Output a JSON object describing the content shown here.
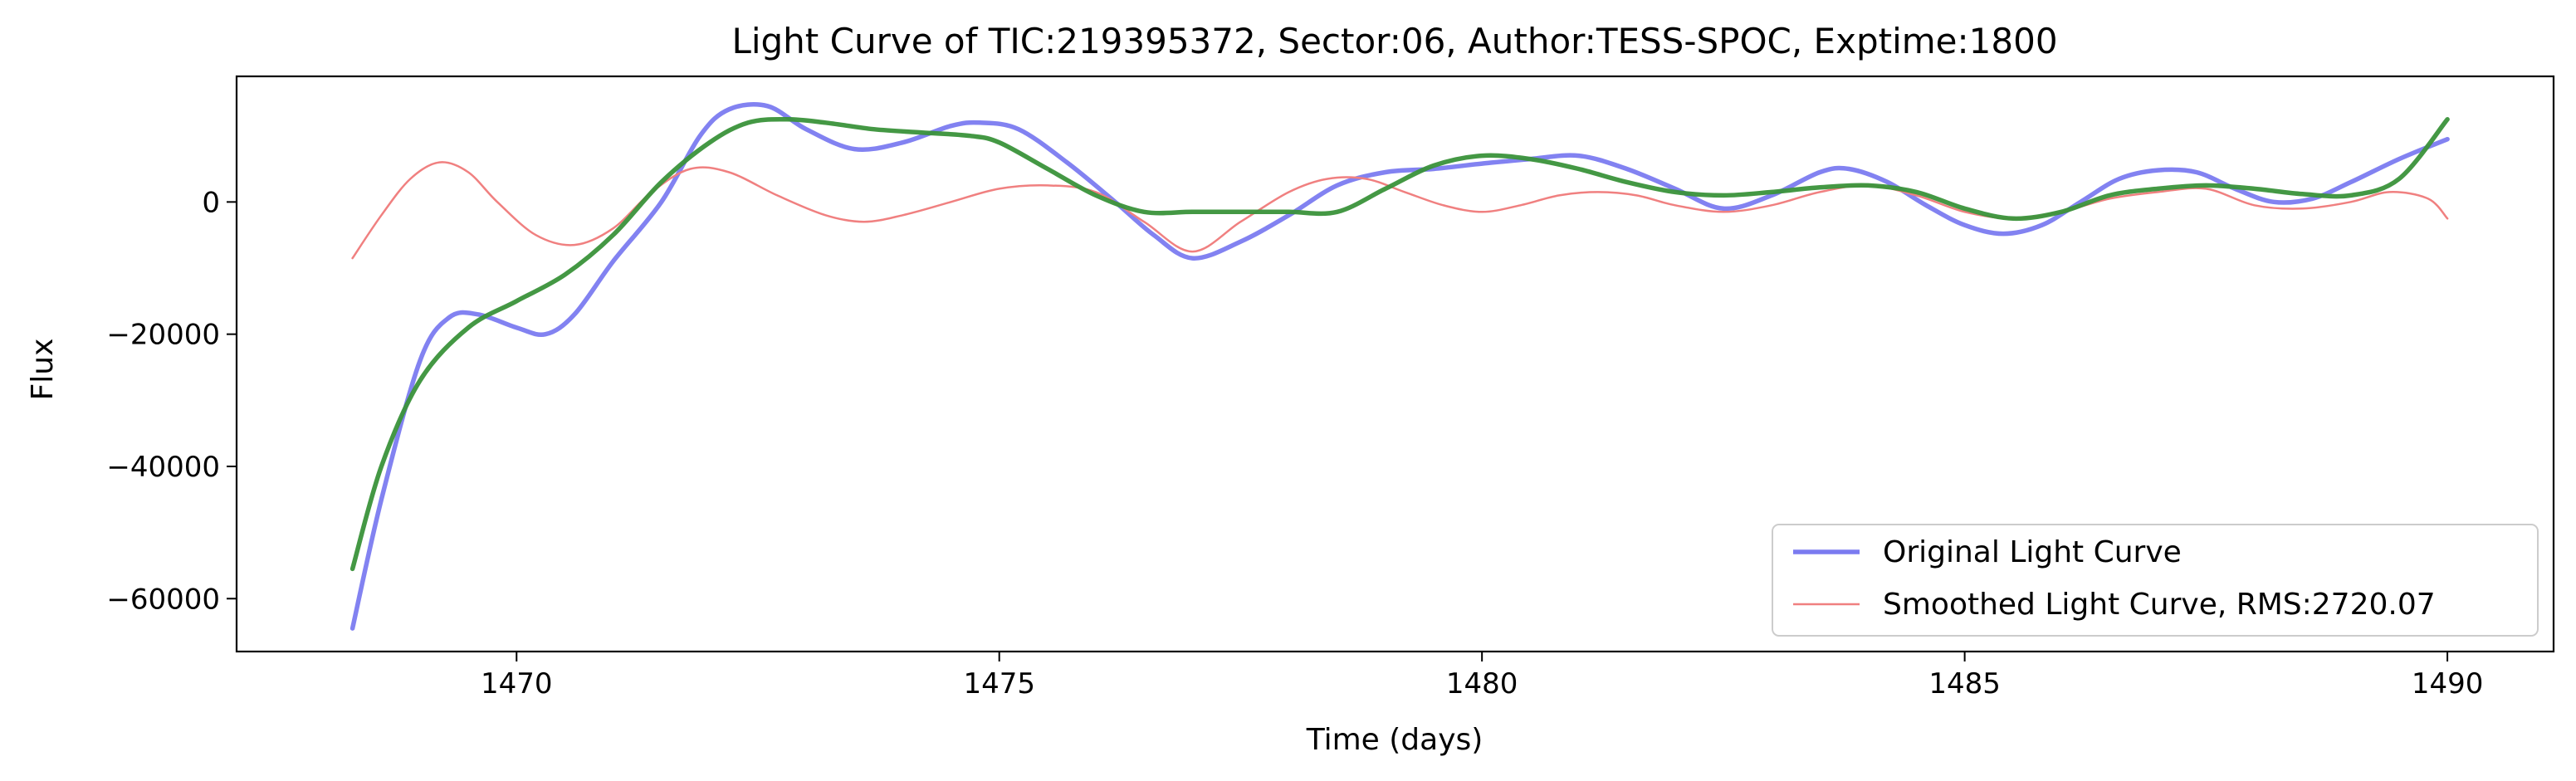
{
  "chart_data": {
    "type": "line",
    "title": "Light Curve of TIC:219395372, Sector:06, Author:TESS-SPOC, Exptime:1800",
    "xlabel": "Time (days)",
    "ylabel": "Flux",
    "xlim": [
      1467.1,
      1491.1
    ],
    "ylim": [
      -68000,
      19000
    ],
    "xticks": [
      1470,
      1475,
      1480,
      1485,
      1490
    ],
    "yticks": [
      -60000,
      -40000,
      -20000,
      0
    ],
    "xtick_labels": [
      "1470",
      "1475",
      "1480",
      "1485",
      "1490"
    ],
    "ytick_labels": [
      "−60000",
      "−40000",
      "−20000",
      "0"
    ],
    "grid": false,
    "legend_position": "bottom-right",
    "series": [
      {
        "name": "Original Light Curve",
        "color": "#7b7bf0",
        "x": [
          1468.3,
          1468.6,
          1469.0,
          1469.3,
          1469.6,
          1470.0,
          1470.3,
          1470.6,
          1471.0,
          1471.5,
          1471.9,
          1472.2,
          1472.6,
          1473.0,
          1473.5,
          1474.0,
          1474.5,
          1474.8,
          1475.2,
          1475.7,
          1476.2,
          1476.6,
          1477.0,
          1477.5,
          1478.0,
          1478.5,
          1479.0,
          1479.5,
          1480.0,
          1480.5,
          1481.0,
          1481.5,
          1482.0,
          1482.5,
          1483.0,
          1483.5,
          1483.8,
          1484.2,
          1484.6,
          1485.0,
          1485.4,
          1485.8,
          1486.2,
          1486.6,
          1487.0,
          1487.4,
          1487.8,
          1488.2,
          1488.6,
          1489.0,
          1489.5,
          1490.0
        ],
        "y": [
          -64500,
          -45000,
          -24000,
          -17500,
          -17000,
          -19000,
          -20000,
          -17000,
          -9000,
          0,
          10000,
          14000,
          14500,
          11000,
          8000,
          9000,
          11500,
          12000,
          11000,
          6000,
          0,
          -5000,
          -8500,
          -6000,
          -2000,
          2500,
          4500,
          5000,
          5800,
          6500,
          7000,
          5000,
          2000,
          -1000,
          1000,
          4500,
          5000,
          3000,
          -500,
          -3500,
          -4800,
          -3500,
          0,
          3500,
          4800,
          4500,
          2000,
          0,
          500,
          3000,
          6500,
          9500
        ]
      },
      {
        "name": "Smoothed Light Curve, RMS:2720.07",
        "color": "#f08080",
        "x": [
          1468.3,
          1468.6,
          1468.9,
          1469.2,
          1469.5,
          1469.8,
          1470.2,
          1470.6,
          1471.0,
          1471.4,
          1471.8,
          1472.2,
          1472.7,
          1473.2,
          1473.6,
          1474.0,
          1474.5,
          1475.0,
          1475.5,
          1476.0,
          1476.5,
          1477.0,
          1477.5,
          1478.0,
          1478.4,
          1478.8,
          1479.2,
          1479.6,
          1480.0,
          1480.4,
          1480.8,
          1481.2,
          1481.6,
          1482.0,
          1482.5,
          1483.0,
          1483.5,
          1484.0,
          1484.5,
          1485.0,
          1485.5,
          1486.0,
          1486.5,
          1487.0,
          1487.5,
          1488.0,
          1488.5,
          1489.0,
          1489.4,
          1489.8,
          1490.0
        ],
        "y": [
          -8500,
          -2000,
          3500,
          6000,
          4500,
          0,
          -5000,
          -6500,
          -4000,
          1500,
          5000,
          4500,
          1000,
          -2000,
          -3000,
          -2000,
          0,
          2000,
          2500,
          1500,
          -3000,
          -7500,
          -3000,
          1500,
          3500,
          3500,
          1500,
          -500,
          -1500,
          -500,
          1000,
          1500,
          1000,
          -500,
          -1500,
          -500,
          1500,
          2500,
          1000,
          -1500,
          -2500,
          -1500,
          500,
          1500,
          2000,
          -500,
          -1000,
          0,
          1500,
          500,
          -2500
        ]
      },
      {
        "name": "",
        "color": "#3a923a",
        "x": [
          1468.3,
          1468.6,
          1469.0,
          1469.5,
          1470.0,
          1470.5,
          1471.0,
          1471.5,
          1472.0,
          1472.4,
          1472.8,
          1473.2,
          1473.7,
          1474.2,
          1474.7,
          1475.0,
          1475.5,
          1476.0,
          1476.5,
          1477.0,
          1477.5,
          1478.0,
          1478.5,
          1479.0,
          1479.5,
          1480.0,
          1480.5,
          1481.0,
          1481.5,
          1482.0,
          1482.5,
          1483.0,
          1483.5,
          1484.0,
          1484.5,
          1485.0,
          1485.5,
          1486.0,
          1486.5,
          1487.0,
          1487.5,
          1488.0,
          1488.5,
          1489.0,
          1489.5,
          1490.0
        ],
        "y": [
          -55500,
          -40000,
          -27000,
          -19000,
          -15000,
          -11000,
          -5000,
          3000,
          9000,
          12000,
          12500,
          12000,
          11000,
          10500,
          10000,
          9000,
          5000,
          1000,
          -1500,
          -1500,
          -1500,
          -1500,
          -1500,
          2000,
          5500,
          7000,
          6500,
          5000,
          3000,
          1500,
          1000,
          1500,
          2200,
          2500,
          1500,
          -1000,
          -2500,
          -1500,
          1000,
          2000,
          2500,
          2000,
          1200,
          1000,
          3500,
          12500
        ]
      }
    ]
  }
}
